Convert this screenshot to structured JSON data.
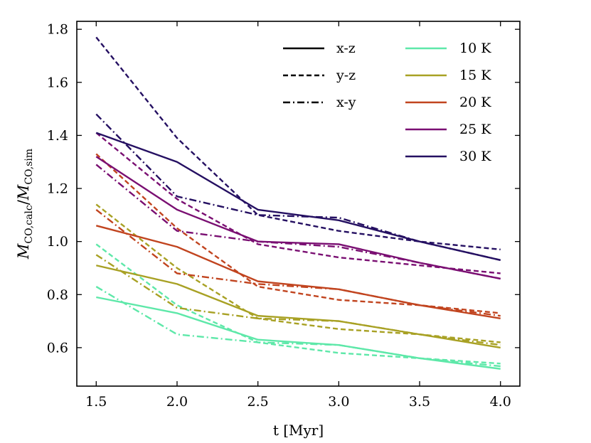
{
  "chart_data": {
    "type": "line",
    "xlabel": "t [Myr]",
    "ylabel": {
      "main": "M",
      "sub1": "CO,calc",
      "sep": "/",
      "main2": "M",
      "sub2": "CO,sim"
    },
    "xlim": [
      1.38,
      4.12
    ],
    "ylim": [
      0.455,
      1.83
    ],
    "xticks": [
      1.5,
      2.0,
      2.5,
      3.0,
      3.5,
      4.0
    ],
    "xtick_labels": [
      "1.5",
      "2.0",
      "2.5",
      "3.0",
      "3.5",
      "4.0"
    ],
    "yticks": [
      0.6,
      0.8,
      1.0,
      1.2,
      1.4,
      1.6,
      1.8
    ],
    "ytick_labels": [
      "0.6",
      "0.8",
      "1.0",
      "1.2",
      "1.4",
      "1.6",
      "1.8"
    ],
    "x": [
      1.5,
      2.0,
      2.5,
      3.0,
      3.5,
      4.0
    ],
    "projections": [
      {
        "name": "x-z",
        "dash": "solid"
      },
      {
        "name": "y-z",
        "dash": "dashed"
      },
      {
        "name": "x-y",
        "dash": "dashdot"
      }
    ],
    "temperatures": [
      {
        "name": "10 K",
        "color": "#5ee8a9"
      },
      {
        "name": "15 K",
        "color": "#a8a124"
      },
      {
        "name": "20 K",
        "color": "#c1441f"
      },
      {
        "name": "25 K",
        "color": "#7a0f72"
      },
      {
        "name": "30 K",
        "color": "#251062"
      }
    ],
    "series": [
      {
        "temperature": "10 K",
        "projection": "x-z",
        "values": [
          0.79,
          0.73,
          0.63,
          0.61,
          0.56,
          0.52
        ]
      },
      {
        "temperature": "10 K",
        "projection": "y-z",
        "values": [
          0.99,
          0.76,
          0.62,
          0.58,
          0.56,
          0.54
        ]
      },
      {
        "temperature": "10 K",
        "projection": "x-y",
        "values": [
          0.83,
          0.65,
          0.62,
          0.61,
          0.56,
          0.53
        ]
      },
      {
        "temperature": "15 K",
        "projection": "x-z",
        "values": [
          0.91,
          0.84,
          0.72,
          0.7,
          0.65,
          0.6
        ]
      },
      {
        "temperature": "15 K",
        "projection": "y-z",
        "values": [
          1.14,
          0.9,
          0.71,
          0.67,
          0.65,
          0.62
        ]
      },
      {
        "temperature": "15 K",
        "projection": "x-y",
        "values": [
          0.95,
          0.75,
          0.71,
          0.7,
          0.65,
          0.61
        ]
      },
      {
        "temperature": "20 K",
        "projection": "x-z",
        "values": [
          1.06,
          0.98,
          0.85,
          0.82,
          0.76,
          0.71
        ]
      },
      {
        "temperature": "20 K",
        "projection": "y-z",
        "values": [
          1.33,
          1.05,
          0.83,
          0.78,
          0.76,
          0.73
        ]
      },
      {
        "temperature": "20 K",
        "projection": "x-y",
        "values": [
          1.12,
          0.88,
          0.84,
          0.82,
          0.76,
          0.72
        ]
      },
      {
        "temperature": "25 K",
        "projection": "x-z",
        "values": [
          1.32,
          1.12,
          1.0,
          0.99,
          0.92,
          0.86
        ]
      },
      {
        "temperature": "25 K",
        "projection": "y-z",
        "values": [
          1.41,
          1.16,
          0.99,
          0.94,
          0.91,
          0.88
        ]
      },
      {
        "temperature": "25 K",
        "projection": "x-y",
        "values": [
          1.29,
          1.04,
          1.0,
          0.98,
          0.92,
          0.86
        ]
      },
      {
        "temperature": "30 K",
        "projection": "x-z",
        "values": [
          1.41,
          1.3,
          1.12,
          1.08,
          1.0,
          0.93
        ]
      },
      {
        "temperature": "30 K",
        "projection": "y-z",
        "values": [
          1.77,
          1.39,
          1.1,
          1.04,
          1.0,
          0.97
        ]
      },
      {
        "temperature": "30 K",
        "projection": "x-y",
        "values": [
          1.48,
          1.17,
          1.1,
          1.09,
          1.0,
          0.93
        ]
      }
    ],
    "legend_position": "top-right",
    "grid": false
  }
}
